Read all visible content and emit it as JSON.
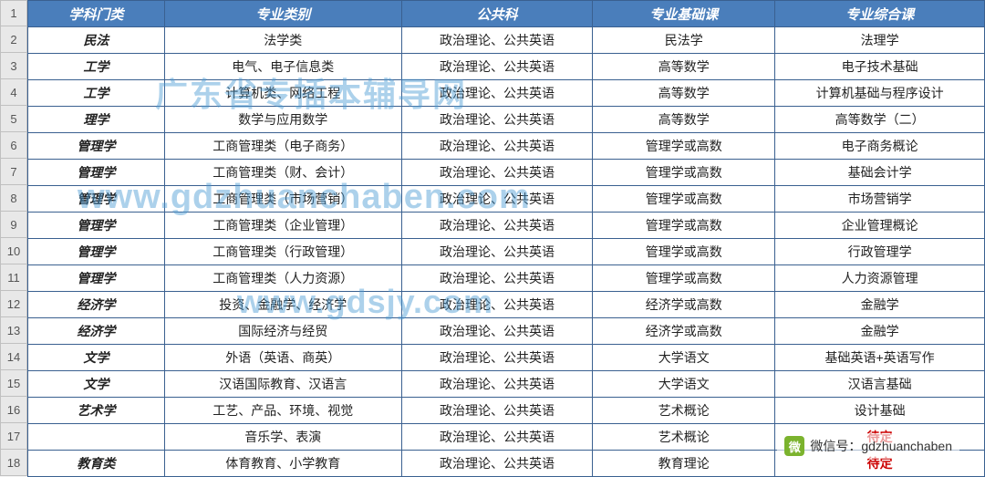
{
  "table": {
    "header_bg": "#4a7ebb",
    "header_color": "#ffffff",
    "border_color": "#3a6090",
    "rownum_bg": "#e8e8e8",
    "columns": [
      "学科门类",
      "专业类别",
      "公共科",
      "专业基础课",
      "专业综合课"
    ],
    "col_widths": [
      "150px",
      "260px",
      "210px",
      "200px",
      "230px"
    ],
    "rows": [
      {
        "n": "1",
        "cells": [
          "",
          "",
          "",
          "",
          ""
        ],
        "header": true
      },
      {
        "n": "2",
        "cells": [
          "民法",
          "法学类",
          "政治理论、公共英语",
          "民法学",
          "法理学"
        ]
      },
      {
        "n": "3",
        "cells": [
          "工学",
          "电气、电子信息类",
          "政治理论、公共英语",
          "高等数学",
          "电子技术基础"
        ]
      },
      {
        "n": "4",
        "cells": [
          "工学",
          "计算机类、网络工程",
          "政治理论、公共英语",
          "高等数学",
          "计算机基础与程序设计"
        ]
      },
      {
        "n": "5",
        "cells": [
          "理学",
          "数学与应用数学",
          "政治理论、公共英语",
          "高等数学",
          "高等数学（二）"
        ]
      },
      {
        "n": "6",
        "cells": [
          "管理学",
          "工商管理类（电子商务）",
          "政治理论、公共英语",
          "管理学或高数",
          "电子商务概论"
        ]
      },
      {
        "n": "7",
        "cells": [
          "管理学",
          "工商管理类（财、会计）",
          "政治理论、公共英语",
          "管理学或高数",
          "基础会计学"
        ]
      },
      {
        "n": "8",
        "cells": [
          "管理学",
          "工商管理类（市场营销）",
          "政治理论、公共英语",
          "管理学或高数",
          "市场营销学"
        ]
      },
      {
        "n": "9",
        "cells": [
          "管理学",
          "工商管理类（企业管理）",
          "政治理论、公共英语",
          "管理学或高数",
          "企业管理概论"
        ]
      },
      {
        "n": "10",
        "cells": [
          "管理学",
          "工商管理类（行政管理）",
          "政治理论、公共英语",
          "管理学或高数",
          "行政管理学"
        ]
      },
      {
        "n": "11",
        "cells": [
          "管理学",
          "工商管理类（人力资源）",
          "政治理论、公共英语",
          "管理学或高数",
          "人力资源管理"
        ]
      },
      {
        "n": "12",
        "cells": [
          "经济学",
          "投资、金融学、经济学",
          "政治理论、公共英语",
          "经济学或高数",
          "金融学"
        ]
      },
      {
        "n": "13",
        "cells": [
          "经济学",
          "国际经济与经贸",
          "政治理论、公共英语",
          "经济学或高数",
          "金融学"
        ]
      },
      {
        "n": "14",
        "cells": [
          "文学",
          "外语（英语、商英）",
          "政治理论、公共英语",
          "大学语文",
          "基础英语+英语写作"
        ]
      },
      {
        "n": "15",
        "cells": [
          "文学",
          "汉语国际教育、汉语言",
          "政治理论、公共英语",
          "大学语文",
          "汉语言基础"
        ]
      },
      {
        "n": "16",
        "cells": [
          "艺术学",
          "工艺、产品、环境、视觉",
          "政治理论、公共英语",
          "艺术概论",
          "设计基础"
        ]
      },
      {
        "n": "17",
        "cells": [
          "",
          "音乐学、表演",
          "政治理论、公共英语",
          "艺术概论",
          "待定"
        ],
        "red_cols": [
          4
        ]
      },
      {
        "n": "18",
        "cells": [
          "教育类",
          "体育教育、小学教育",
          "政治理论、公共英语",
          "教育理论",
          "待定"
        ],
        "red_cols": [
          4
        ]
      }
    ]
  },
  "watermarks": {
    "wm1": "广东省专插本辅导网",
    "wm2": "www.gdzhuanchaben.com",
    "wm3": "www.gdsjy.com"
  },
  "wechat": {
    "icon_glyph": "微",
    "label": "微信号：gdzhuanchaben"
  }
}
